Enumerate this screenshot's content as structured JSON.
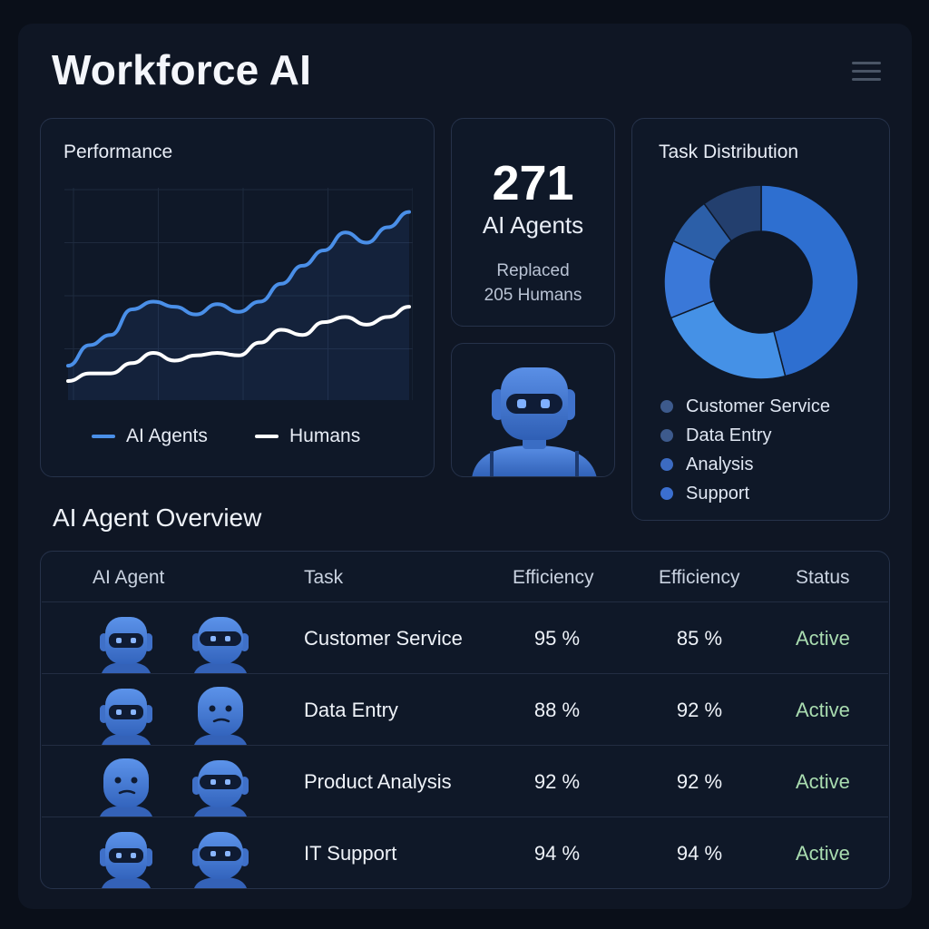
{
  "app": {
    "title": "Workforce AI"
  },
  "performance": {
    "title": "Performance",
    "legend": [
      {
        "label": "AI Agents",
        "color": "#4a8fe8"
      },
      {
        "label": "Humans",
        "color": "#ffffff"
      }
    ]
  },
  "chart_data": {
    "type": "line",
    "title": "Performance",
    "series": [
      {
        "name": "AI Agents",
        "color": "#4a8fe8",
        "values": [
          1.2,
          2.0,
          2.4,
          3.4,
          3.7,
          3.5,
          3.2,
          3.6,
          3.3,
          3.7,
          4.4,
          5.1,
          5.7,
          6.4,
          6.0,
          6.6,
          7.2
        ]
      },
      {
        "name": "Humans",
        "color": "#ffffff",
        "values": [
          0.6,
          0.9,
          0.9,
          1.3,
          1.7,
          1.4,
          1.6,
          1.7,
          1.6,
          2.1,
          2.6,
          2.4,
          2.9,
          3.1,
          2.8,
          3.1,
          3.5
        ]
      }
    ],
    "ylim": [
      0,
      8
    ],
    "grid": true,
    "legend_position": "bottom"
  },
  "stat": {
    "number": "271",
    "label": "AI Agents",
    "sub_line1": "Replaced",
    "sub_line2": "205 Humans"
  },
  "distribution": {
    "title": "Task Distribution",
    "segments": [
      {
        "label": "Customer Service",
        "color": "#2e6fd0",
        "value": 46
      },
      {
        "label": "Data Entry",
        "color": "#4591e6",
        "value": 23
      },
      {
        "label": "Analysis",
        "color": "#3a78d8",
        "value": 13
      },
      {
        "label": "Support",
        "color": "#2c5fa8",
        "value": 8
      },
      {
        "label": "",
        "color": "#233f6e",
        "value": 10
      }
    ],
    "legend": [
      {
        "label": "Customer Service",
        "color": "#3d5a8c"
      },
      {
        "label": "Data Entry",
        "color": "#3d5a8c"
      },
      {
        "label": "Analysis",
        "color": "#3c6bc2"
      },
      {
        "label": "Support",
        "color": "#3b6fd0"
      }
    ]
  },
  "overview": {
    "title": "AI Agent Overview",
    "headers": [
      "AI Agent",
      "Task",
      "Efficiency",
      "Efficiency",
      "Status"
    ],
    "rows": [
      {
        "task": "Customer Service",
        "eff1": "95 %",
        "eff2": "85 %",
        "status": "Active"
      },
      {
        "task": "Data Entry",
        "eff1": "88 %",
        "eff2": "92 %",
        "status": "Active"
      },
      {
        "task": "Product Analysis",
        "eff1": "92 %",
        "eff2": "92 %",
        "status": "Active"
      },
      {
        "task": "IT Support",
        "eff1": "94 %",
        "eff2": "94 %",
        "status": "Active"
      }
    ]
  }
}
